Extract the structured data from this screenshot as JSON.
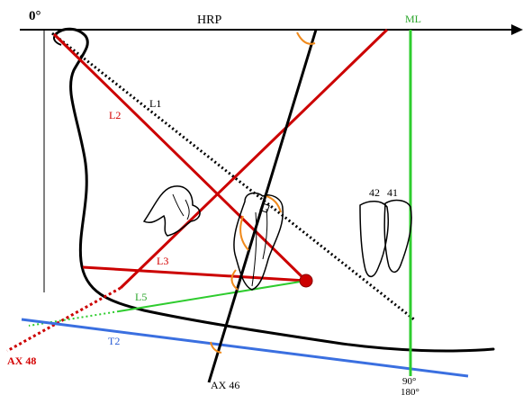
{
  "figure": {
    "labels": {
      "zero_deg": "0°",
      "hrp": "HRP",
      "ml": "ML",
      "l1": "L1",
      "l2": "L2",
      "l3": "L3",
      "l5": "L5",
      "t2": "T2",
      "ax48": "AX 48",
      "ax46": "AX 46",
      "tooth42": "42",
      "tooth41": "41",
      "deg90": "90°",
      "deg180": "180°"
    },
    "colors": {
      "black": "#000000",
      "red": "#cc0000",
      "green": "#2ecc2e",
      "blue": "#3a6fe0",
      "orange": "#f08a1c",
      "label_red": "#d40000",
      "label_green": "#2aa52a",
      "label_blue": "#2d5fd6"
    }
  }
}
